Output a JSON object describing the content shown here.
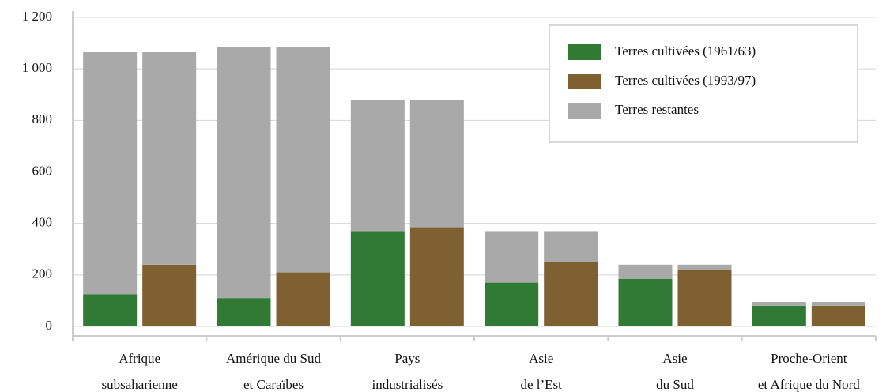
{
  "chart_data": {
    "type": "bar",
    "categories": [
      [
        "Afrique",
        "subsaharienne"
      ],
      [
        "Amérique du Sud",
        "et Caraïbes"
      ],
      [
        "Pays",
        "industrialisés"
      ],
      [
        "Asie",
        "de l’Est"
      ],
      [
        "Asie",
        "du Sud"
      ],
      [
        "Proche-Orient",
        "et Afrique du Nord"
      ]
    ],
    "series": [
      {
        "name": "Terres cultivées (1961/63)",
        "color": "#317a35",
        "values": [
          125,
          110,
          370,
          170,
          185,
          80
        ]
      },
      {
        "name": "Terres cultivées (1993/97)",
        "color": "#7f6030",
        "values": [
          240,
          210,
          385,
          250,
          220,
          80
        ]
      },
      {
        "name": "Terres restantes",
        "color": "#a9a9a9",
        "values": [
          [
            940,
            825
          ],
          [
            975,
            875
          ],
          [
            510,
            495
          ],
          [
            200,
            120
          ],
          [
            55,
            20
          ],
          [
            15,
            15
          ]
        ]
      }
    ],
    "ylim": [
      0,
      1200
    ],
    "yticks": [
      0,
      200,
      400,
      600,
      800,
      {
        "value": 1000,
        "label": "1 000"
      },
      {
        "value": 1200,
        "label": "1 200"
      }
    ],
    "grid": true,
    "legend": "upper right"
  }
}
